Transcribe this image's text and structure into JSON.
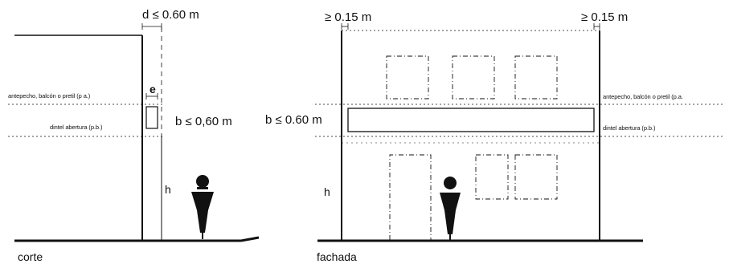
{
  "corte": {
    "caption": "corte",
    "dimension_d": "d ≤ 0.60 m",
    "dimension_e": "e",
    "dimension_b": "b ≤ 0,60 m",
    "dimension_h": "h",
    "label_antepecho": "antepecho, balcón o pretil (p a.)",
    "label_dintel": "dintel abertura (p.b.)"
  },
  "fachada": {
    "caption": "fachada",
    "dimension_left": "≥ 0.15 m",
    "dimension_right": "≥ 0.15 m",
    "dimension_b": "b ≤ 0.60 m",
    "dimension_h": "h",
    "label_antepecho": "antepecho, balcón o pretil (p.a.",
    "label_dintel": "dintel abertura (p.b.)"
  },
  "icons": [
    "person-figure-icon",
    "person-figure-icon"
  ]
}
